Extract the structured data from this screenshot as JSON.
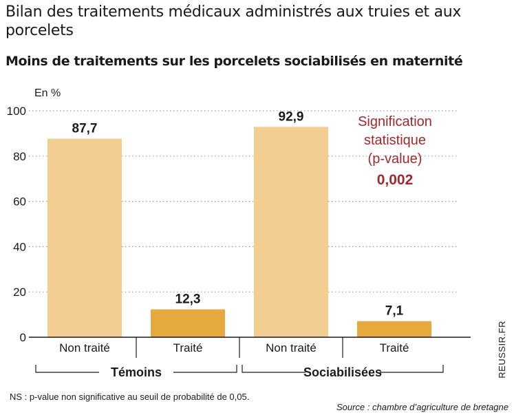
{
  "header": {
    "title": "Bilan des traitements médicaux administrés aux truies et aux porcelets",
    "subtitle": "Moins de traitements sur les porcelets sociabilisés en maternité"
  },
  "annotation": {
    "line1": "Signification",
    "line2": "statistique",
    "line3": "(p-value)",
    "value": "0,002",
    "color": "#a3282c"
  },
  "footer": {
    "note": "NS : p-value non significative au seuil de probabilité de 0,05.",
    "source": "Source : chambre d’agriculture de bretagne",
    "brand": "REUSSIR.FR"
  },
  "chart_data": {
    "type": "bar",
    "ylabel": "En %",
    "ylim": [
      0,
      100
    ],
    "yticks": [
      0,
      20,
      40,
      60,
      80,
      100
    ],
    "grid": "horizontal dotted",
    "groups": [
      "Témoins",
      "Sociabilisées"
    ],
    "categories": [
      "Non traité",
      "Traité",
      "Non traité",
      "Traité"
    ],
    "category_groups": [
      0,
      0,
      1,
      1
    ],
    "values": [
      87.7,
      12.3,
      92.9,
      7.1
    ],
    "value_labels": [
      "87,7",
      "12,3",
      "92,9",
      "7,1"
    ],
    "colors": {
      "non_traite": "#f2cf90",
      "traite": "#e6a93e"
    }
  }
}
